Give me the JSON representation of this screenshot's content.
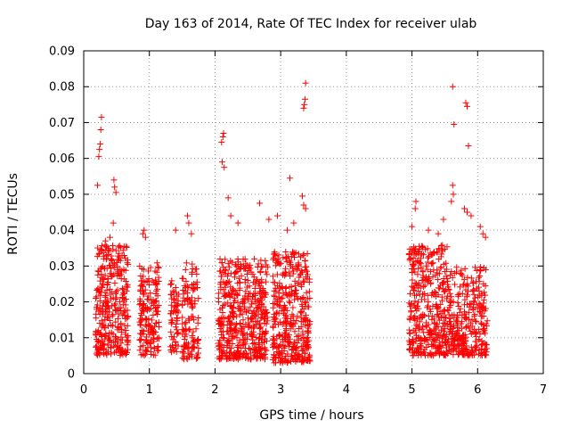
{
  "chart_data": {
    "type": "scatter",
    "title": "Day 163 of 2014, Rate Of TEC Index for receiver ulab",
    "xlabel": "GPS time / hours",
    "ylabel": "ROTI / TECUs",
    "xlim": [
      0,
      7
    ],
    "ylim": [
      0,
      0.09
    ],
    "xticks": [
      "0",
      "1",
      "2",
      "3",
      "4",
      "5",
      "6",
      "7"
    ],
    "yticks": [
      "0",
      "0.01",
      "0.02",
      "0.03",
      "0.04",
      "0.05",
      "0.06",
      "0.07",
      "0.08",
      "0.09"
    ],
    "grid": true,
    "marker": "+",
    "series_color": "#ff0000",
    "clusters": [
      {
        "x_range": [
          0.18,
          0.68
        ],
        "y_range": [
          0.005,
          0.036
        ],
        "count": 320
      },
      {
        "x_range": [
          0.85,
          1.15
        ],
        "y_range": [
          0.005,
          0.031
        ],
        "count": 160
      },
      {
        "x_range": [
          1.32,
          1.45
        ],
        "y_range": [
          0.006,
          0.026
        ],
        "count": 60
      },
      {
        "x_range": [
          1.5,
          1.75
        ],
        "y_range": [
          0.004,
          0.031
        ],
        "count": 120
      },
      {
        "x_range": [
          2.05,
          2.8
        ],
        "y_range": [
          0.004,
          0.032
        ],
        "count": 480
      },
      {
        "x_range": [
          2.88,
          3.45
        ],
        "y_range": [
          0.003,
          0.034
        ],
        "count": 380
      },
      {
        "x_range": [
          4.95,
          5.55
        ],
        "y_range": [
          0.005,
          0.036
        ],
        "count": 380
      },
      {
        "x_range": [
          5.55,
          6.15
        ],
        "y_range": [
          0.005,
          0.03
        ],
        "count": 300
      }
    ],
    "points": [
      {
        "x": 0.27,
        "y": 0.0715
      },
      {
        "x": 0.26,
        "y": 0.068
      },
      {
        "x": 0.25,
        "y": 0.064
      },
      {
        "x": 0.24,
        "y": 0.0625
      },
      {
        "x": 0.23,
        "y": 0.0605
      },
      {
        "x": 0.21,
        "y": 0.0525
      },
      {
        "x": 0.46,
        "y": 0.054
      },
      {
        "x": 0.47,
        "y": 0.052
      },
      {
        "x": 0.49,
        "y": 0.0505
      },
      {
        "x": 0.45,
        "y": 0.042
      },
      {
        "x": 0.4,
        "y": 0.038
      },
      {
        "x": 0.33,
        "y": 0.037
      },
      {
        "x": 0.92,
        "y": 0.04
      },
      {
        "x": 0.94,
        "y": 0.038
      },
      {
        "x": 0.9,
        "y": 0.039
      },
      {
        "x": 1.4,
        "y": 0.04
      },
      {
        "x": 1.58,
        "y": 0.044
      },
      {
        "x": 1.6,
        "y": 0.042
      },
      {
        "x": 1.64,
        "y": 0.039
      },
      {
        "x": 2.13,
        "y": 0.067
      },
      {
        "x": 2.12,
        "y": 0.066
      },
      {
        "x": 2.1,
        "y": 0.0645
      },
      {
        "x": 2.11,
        "y": 0.059
      },
      {
        "x": 2.14,
        "y": 0.0575
      },
      {
        "x": 2.2,
        "y": 0.049
      },
      {
        "x": 2.24,
        "y": 0.044
      },
      {
        "x": 2.35,
        "y": 0.042
      },
      {
        "x": 2.68,
        "y": 0.0475
      },
      {
        "x": 2.82,
        "y": 0.043
      },
      {
        "x": 2.95,
        "y": 0.044
      },
      {
        "x": 3.38,
        "y": 0.081
      },
      {
        "x": 3.37,
        "y": 0.0765
      },
      {
        "x": 3.36,
        "y": 0.075
      },
      {
        "x": 3.35,
        "y": 0.074
      },
      {
        "x": 3.14,
        "y": 0.0545
      },
      {
        "x": 3.33,
        "y": 0.0495
      },
      {
        "x": 3.35,
        "y": 0.047
      },
      {
        "x": 3.38,
        "y": 0.046
      },
      {
        "x": 3.1,
        "y": 0.04
      },
      {
        "x": 3.2,
        "y": 0.042
      },
      {
        "x": 5.06,
        "y": 0.048
      },
      {
        "x": 5.05,
        "y": 0.046
      },
      {
        "x": 5.0,
        "y": 0.041
      },
      {
        "x": 5.25,
        "y": 0.04
      },
      {
        "x": 5.4,
        "y": 0.039
      },
      {
        "x": 5.48,
        "y": 0.043
      },
      {
        "x": 5.62,
        "y": 0.08
      },
      {
        "x": 5.64,
        "y": 0.0695
      },
      {
        "x": 5.82,
        "y": 0.0755
      },
      {
        "x": 5.84,
        "y": 0.0745
      },
      {
        "x": 5.86,
        "y": 0.0635
      },
      {
        "x": 5.62,
        "y": 0.0525
      },
      {
        "x": 5.63,
        "y": 0.05
      },
      {
        "x": 5.6,
        "y": 0.048
      },
      {
        "x": 5.8,
        "y": 0.046
      },
      {
        "x": 5.84,
        "y": 0.045
      },
      {
        "x": 5.9,
        "y": 0.044
      },
      {
        "x": 6.04,
        "y": 0.041
      },
      {
        "x": 6.08,
        "y": 0.039
      },
      {
        "x": 6.12,
        "y": 0.038
      }
    ]
  }
}
